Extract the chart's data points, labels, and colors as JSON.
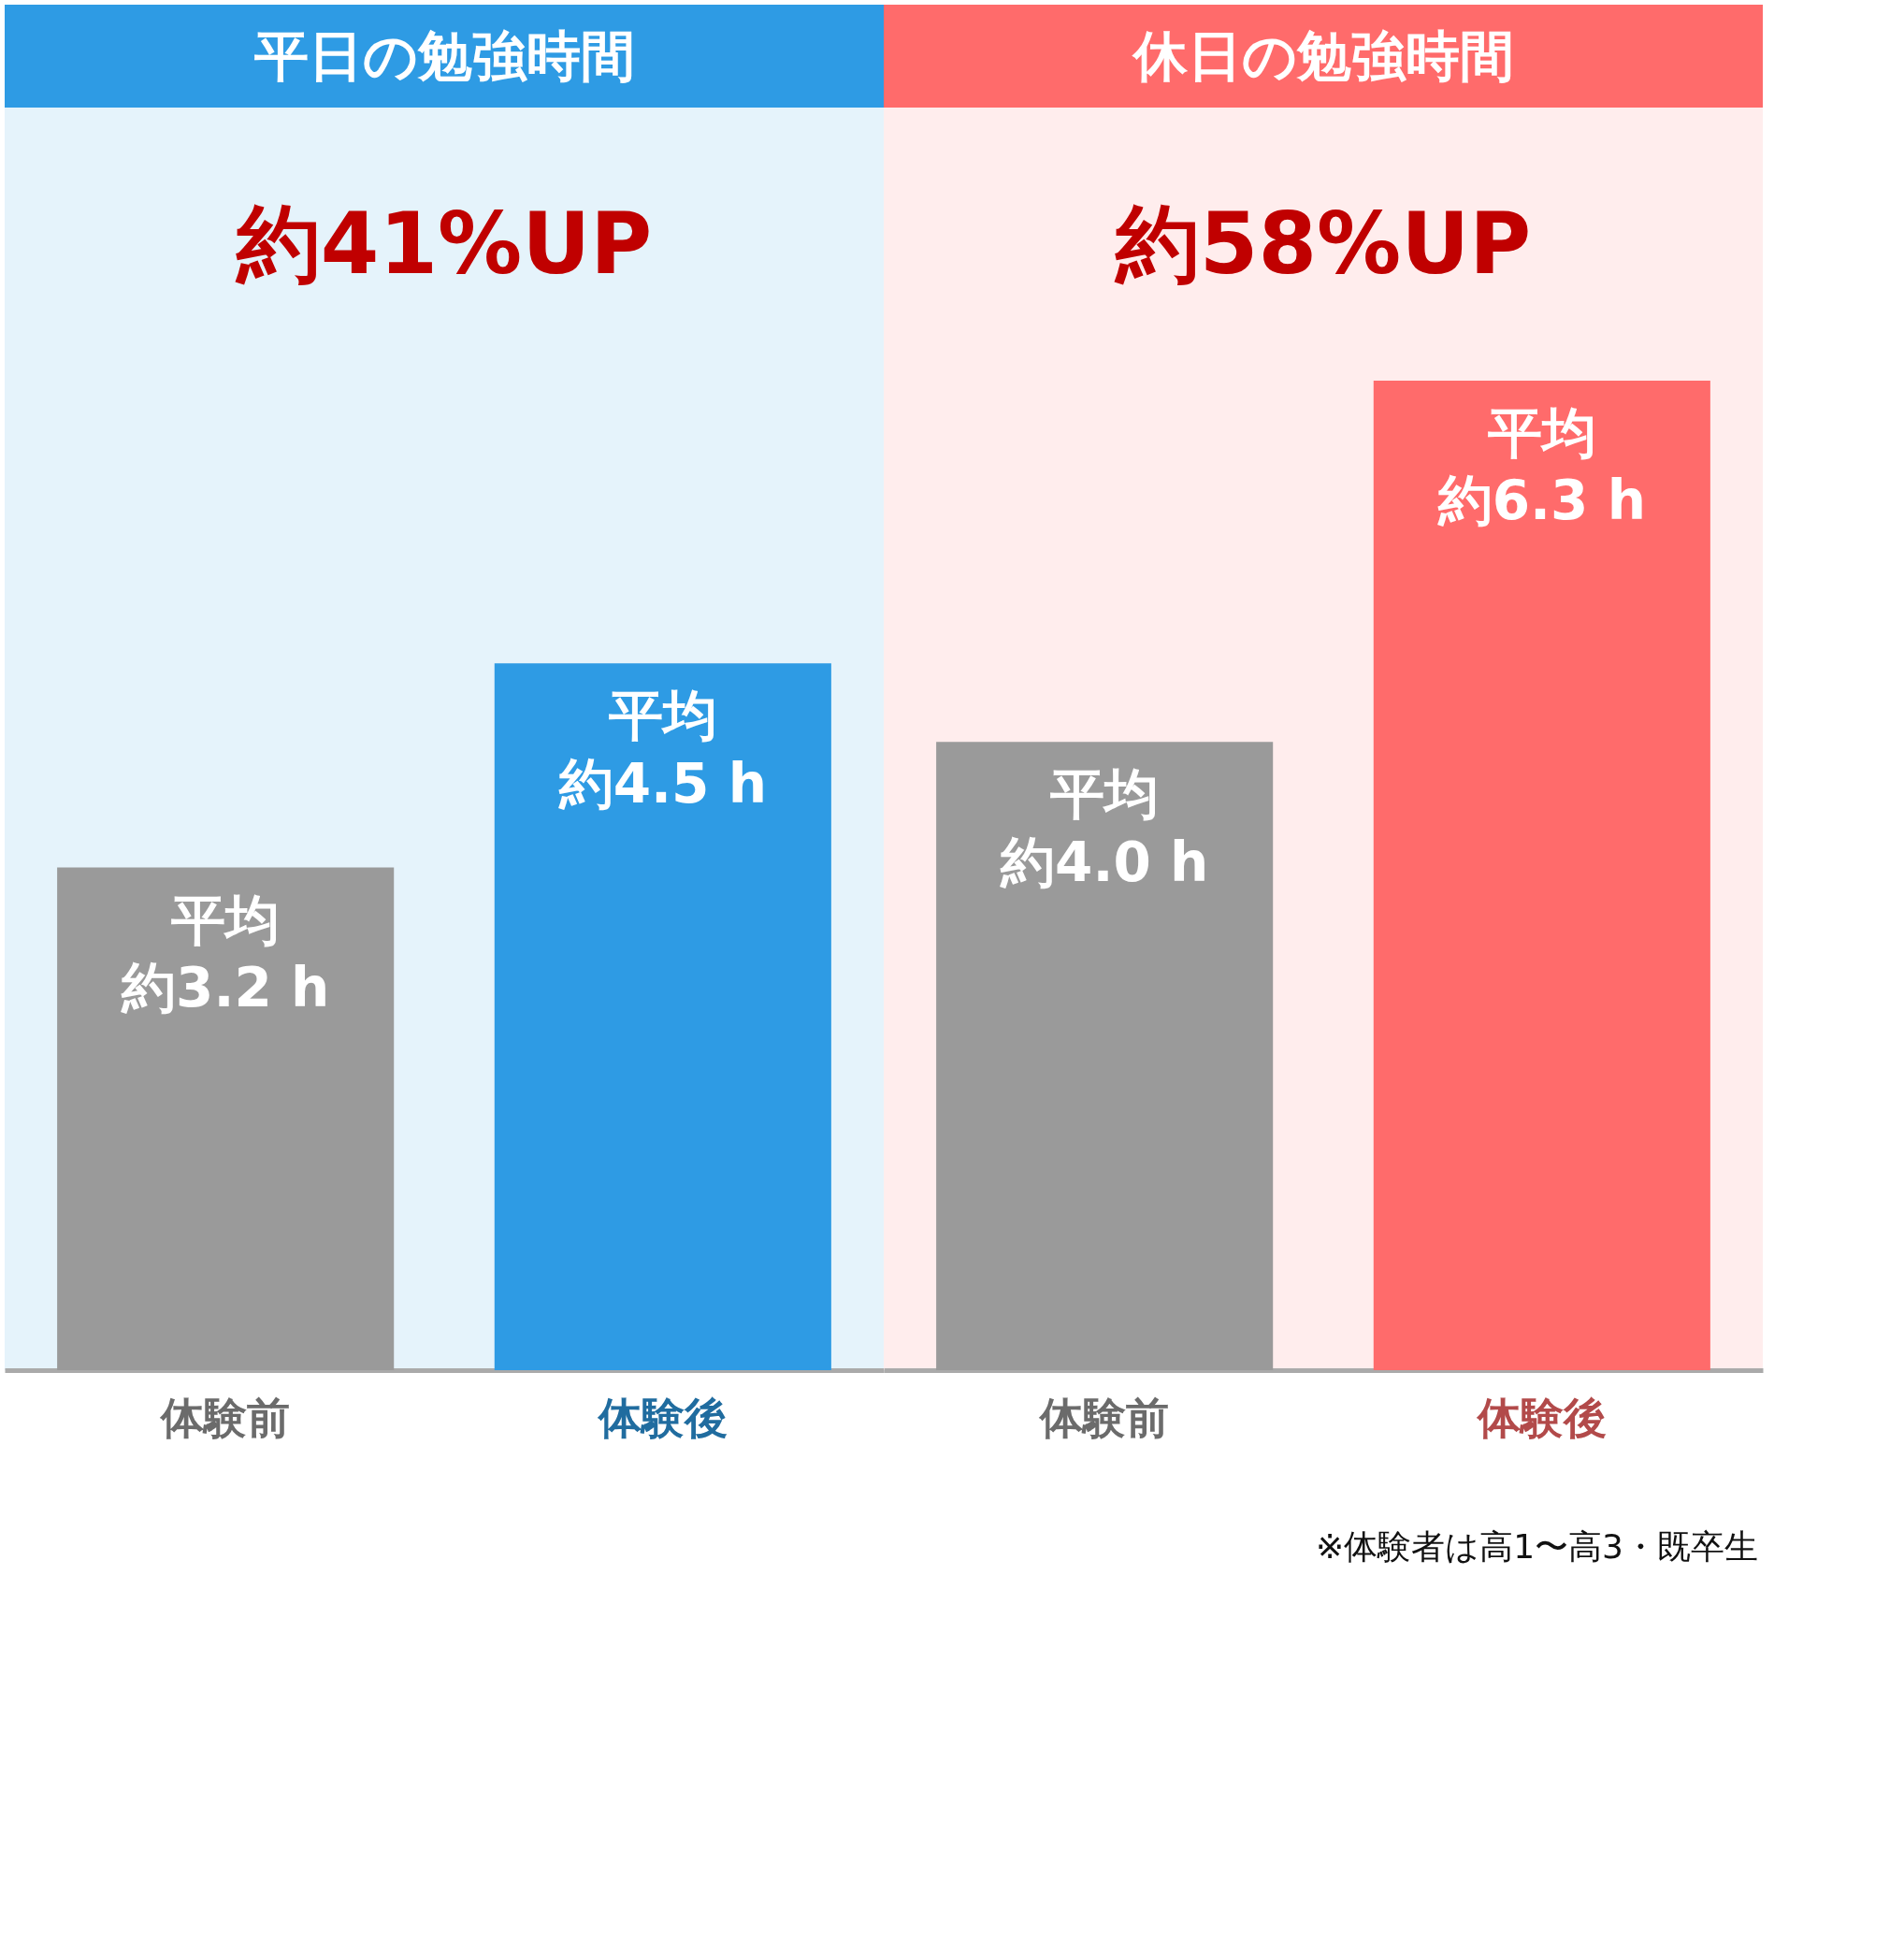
{
  "chart_data": [
    {
      "type": "bar",
      "title": "平日の勉強時間",
      "categories": [
        "体験前",
        "体験後"
      ],
      "values": [
        3.2,
        4.5
      ],
      "colors": [
        "#9a9a9a",
        "#2e9be4"
      ],
      "value_labels": [
        "約3.2 h",
        "約4.5 h"
      ],
      "annotations": [
        "約41%UP",
        {
          "text": "平均",
          "x": "体験前",
          "y": 3.2
        },
        {
          "text": "平均",
          "x": "体験後",
          "y": 4.5
        }
      ]
    },
    {
      "type": "bar",
      "title": "休日の勉強時間",
      "categories": [
        "体験前",
        "体験後"
      ],
      "values": [
        4.0,
        6.3
      ],
      "colors": [
        "#9a9a9a",
        "#ff6b6b"
      ],
      "value_labels": [
        "約4.0 h",
        "約6.3 h"
      ],
      "annotations": [
        "約58%UP",
        "※体験者は高1〜高3・既卒生",
        {
          "text": "平均",
          "x": "体験前",
          "y": 4.0
        },
        {
          "text": "平均",
          "x": "体験後",
          "y": 6.3
        }
      ]
    }
  ]
}
